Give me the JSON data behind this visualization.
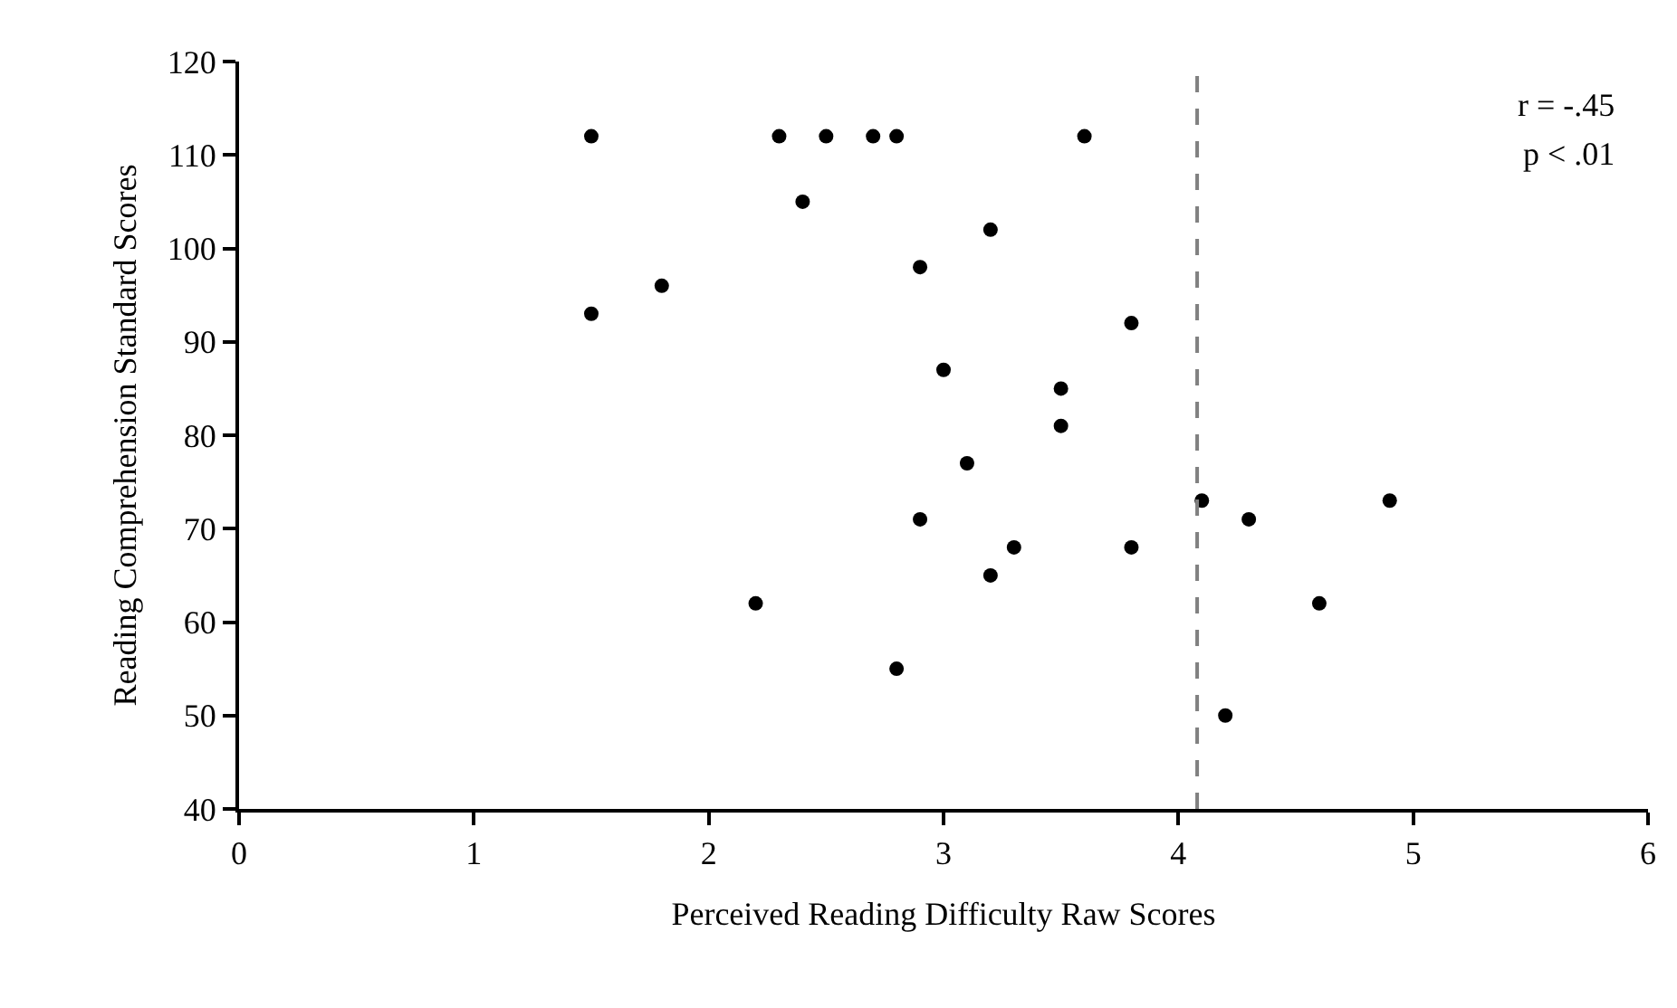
{
  "chart_data": {
    "type": "scatter",
    "xlabel": "Perceived Reading Difficulty Raw Scores",
    "ylabel": "Reading Comprehension Standard Scores",
    "series": [
      {
        "color": "#000000",
        "x": [
          1.5,
          1.5,
          1.8,
          2.2,
          2.3,
          2.4,
          2.5,
          2.7,
          2.8,
          2.8,
          2.9,
          2.9,
          3.0,
          3.1,
          3.2,
          3.2,
          3.3,
          3.5,
          3.5,
          3.6,
          3.8,
          3.8,
          4.1,
          4.2,
          4.3,
          4.6,
          4.9
        ],
        "values": [
          112,
          93,
          96,
          62,
          112,
          105,
          112,
          112,
          112,
          55,
          98,
          71,
          87,
          77,
          102,
          65,
          68,
          85,
          81,
          112,
          92,
          68,
          73,
          50,
          71,
          62,
          73
        ]
      }
    ],
    "marker": "circle",
    "xlim": [
      0,
      6
    ],
    "xticks": [
      0,
      1,
      2,
      3,
      4,
      5,
      6
    ],
    "ylim": [
      40,
      120
    ],
    "yticks": [
      40,
      50,
      60,
      70,
      80,
      90,
      100,
      110,
      120
    ],
    "grid": false,
    "ref_lines": [
      {
        "axis": "x",
        "value": 4.08,
        "color": "#808080",
        "line_style": "dashed"
      }
    ],
    "annotations": [
      "r = -.45",
      "p < .01"
    ]
  }
}
